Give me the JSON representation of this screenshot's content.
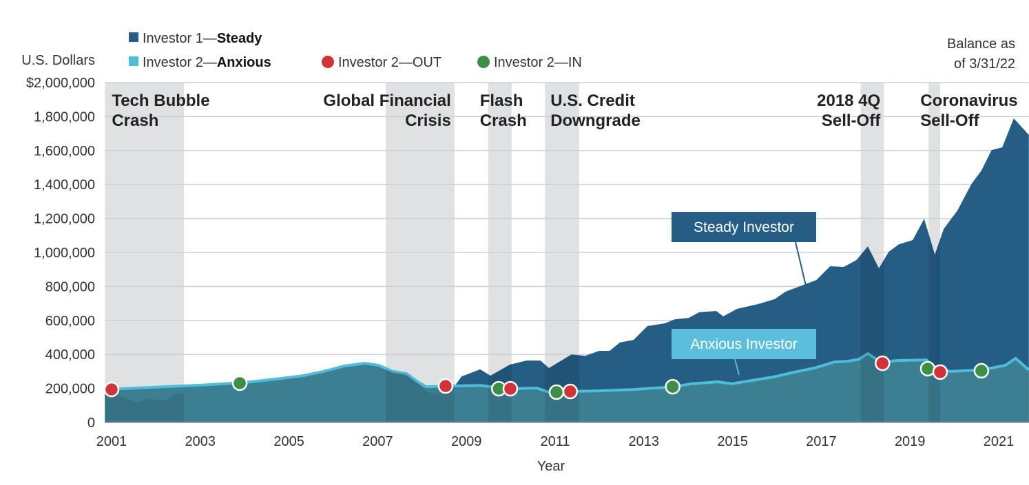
{
  "chart_data": {
    "type": "area",
    "ylabel": "U.S. Dollars",
    "xlabel": "Year",
    "ylim": [
      0,
      2000000
    ],
    "xlim": [
      2000.85,
      2021.68
    ],
    "grid": true,
    "yticks": [
      "$2,000,000",
      "1,800,000",
      "1,600,000",
      "1,400,000",
      "1,200,000",
      "1,000,000",
      "800,000",
      "600,000",
      "400,000",
      "200,000",
      "0"
    ],
    "ytick_values": [
      2000000,
      1800000,
      1600000,
      1400000,
      1200000,
      1000000,
      800000,
      600000,
      400000,
      200000,
      0
    ],
    "xticks": [
      "2001",
      "2003",
      "2005",
      "2007",
      "2009",
      "2011",
      "2013",
      "2015",
      "2017",
      "2019",
      "2021"
    ],
    "balance_note": [
      "Balance as",
      "of 3/31/22"
    ],
    "legend": {
      "placement": "top-left",
      "steady": {
        "prefix": "Investor 1—",
        "bold": "Steady"
      },
      "anxious": {
        "prefix": "Investor 2—",
        "bold": "Anxious"
      },
      "out": "Investor 2—OUT",
      "in": "Investor 2—IN"
    },
    "colors": {
      "steady": "#255d84",
      "anxious_fill": "#3c7f93",
      "anxious_line": "#4fbcd9",
      "out": "#d13438",
      "in": "#3d8f47",
      "band": "#e0e1e3",
      "label_anxious": "#5bbfdc"
    },
    "series": [
      {
        "name": "Steady Investor",
        "points": [
          [
            2000.85,
            178000
          ],
          [
            2001.0,
            186000
          ],
          [
            2001.36,
            138000
          ],
          [
            2001.59,
            117000
          ],
          [
            2001.82,
            138000
          ],
          [
            2002.21,
            130000
          ],
          [
            2002.44,
            170000
          ],
          [
            2002.68,
            170000
          ],
          [
            2002.99,
            194000
          ],
          [
            2003.45,
            210000
          ],
          [
            2004.07,
            227000
          ],
          [
            2004.7,
            251000
          ],
          [
            2005.32,
            275000
          ],
          [
            2005.78,
            300000
          ],
          [
            2006.25,
            332000
          ],
          [
            2006.71,
            348000
          ],
          [
            2007.02,
            332000
          ],
          [
            2007.34,
            300000
          ],
          [
            2007.65,
            287000
          ],
          [
            2007.88,
            235000
          ],
          [
            2008.11,
            178000
          ],
          [
            2008.42,
            162000
          ],
          [
            2008.66,
            186000
          ],
          [
            2008.89,
            270000
          ],
          [
            2009.31,
            312000
          ],
          [
            2009.54,
            275000
          ],
          [
            2009.98,
            340000
          ],
          [
            2010.36,
            364000
          ],
          [
            2010.67,
            364000
          ],
          [
            2010.86,
            320000
          ],
          [
            2011.37,
            400000
          ],
          [
            2011.68,
            392000
          ],
          [
            2011.99,
            421000
          ],
          [
            2012.23,
            421000
          ],
          [
            2012.46,
            470000
          ],
          [
            2012.77,
            486000
          ],
          [
            2013.08,
            567000
          ],
          [
            2013.47,
            583000
          ],
          [
            2013.7,
            607000
          ],
          [
            2014.01,
            615000
          ],
          [
            2014.25,
            648000
          ],
          [
            2014.63,
            656000
          ],
          [
            2014.79,
            624000
          ],
          [
            2015.1,
            668000
          ],
          [
            2015.57,
            696000
          ],
          [
            2015.95,
            725000
          ],
          [
            2016.19,
            769000
          ],
          [
            2016.57,
            806000
          ],
          [
            2016.89,
            838000
          ],
          [
            2017.2,
            919000
          ],
          [
            2017.51,
            915000
          ],
          [
            2017.79,
            955000
          ],
          [
            2018.05,
            1036000
          ],
          [
            2018.3,
            907000
          ],
          [
            2018.52,
            1004000
          ],
          [
            2018.75,
            1048000
          ],
          [
            2019.06,
            1073000
          ],
          [
            2019.32,
            1198000
          ],
          [
            2019.56,
            988000
          ],
          [
            2019.76,
            1138000
          ],
          [
            2020.07,
            1247000
          ],
          [
            2020.38,
            1401000
          ],
          [
            2020.61,
            1482000
          ],
          [
            2020.84,
            1603000
          ],
          [
            2021.08,
            1619000
          ],
          [
            2021.34,
            1789000
          ],
          [
            2021.68,
            1692000
          ]
        ]
      },
      {
        "name": "Anxious Investor",
        "points": [
          [
            2000.85,
            194000
          ],
          [
            2002.21,
            210000
          ],
          [
            2003.0,
            219000
          ],
          [
            2004.01,
            235000
          ],
          [
            2004.7,
            255000
          ],
          [
            2005.32,
            275000
          ],
          [
            2005.78,
            300000
          ],
          [
            2006.25,
            332000
          ],
          [
            2006.71,
            348000
          ],
          [
            2007.02,
            336000
          ],
          [
            2007.34,
            300000
          ],
          [
            2007.65,
            287000
          ],
          [
            2007.88,
            243000
          ],
          [
            2008.09,
            210000
          ],
          [
            2008.66,
            214000
          ],
          [
            2009.31,
            218000
          ],
          [
            2009.54,
            210000
          ],
          [
            2009.98,
            198000
          ],
          [
            2010.59,
            202000
          ],
          [
            2010.86,
            178000
          ],
          [
            2011.37,
            182000
          ],
          [
            2011.99,
            186000
          ],
          [
            2012.77,
            194000
          ],
          [
            2013.7,
            210000
          ],
          [
            2014.06,
            227000
          ],
          [
            2014.67,
            239000
          ],
          [
            2014.98,
            227000
          ],
          [
            2015.44,
            247000
          ],
          [
            2015.91,
            267000
          ],
          [
            2016.38,
            295000
          ],
          [
            2016.84,
            320000
          ],
          [
            2017.3,
            356000
          ],
          [
            2017.61,
            360000
          ],
          [
            2017.85,
            372000
          ],
          [
            2018.05,
            405000
          ],
          [
            2018.36,
            352000
          ],
          [
            2018.67,
            364000
          ],
          [
            2019.37,
            368000
          ],
          [
            2019.6,
            316000
          ],
          [
            2019.91,
            300000
          ],
          [
            2020.53,
            308000
          ],
          [
            2020.84,
            320000
          ],
          [
            2021.15,
            336000
          ],
          [
            2021.38,
            377000
          ],
          [
            2021.68,
            308000
          ]
        ]
      }
    ],
    "markers": [
      {
        "type": "out",
        "x": 2001.0,
        "y": 194000
      },
      {
        "type": "in",
        "x": 2003.89,
        "y": 231000
      },
      {
        "type": "out",
        "x": 2008.53,
        "y": 214000
      },
      {
        "type": "in",
        "x": 2009.73,
        "y": 198000
      },
      {
        "type": "out",
        "x": 2009.99,
        "y": 198000
      },
      {
        "type": "in",
        "x": 2011.03,
        "y": 178000
      },
      {
        "type": "out",
        "x": 2011.34,
        "y": 182000
      },
      {
        "type": "in",
        "x": 2013.65,
        "y": 210000
      },
      {
        "type": "out",
        "x": 2018.38,
        "y": 348000
      },
      {
        "type": "in",
        "x": 2019.4,
        "y": 316000
      },
      {
        "type": "out",
        "x": 2019.68,
        "y": 296000
      },
      {
        "type": "in",
        "x": 2020.61,
        "y": 304000
      }
    ],
    "events": [
      {
        "lines": [
          "Tech Bubble",
          "Crash"
        ],
        "start": 2000.85,
        "end": 2002.63,
        "align": "start"
      },
      {
        "lines": [
          "Global Financial",
          "Crisis"
        ],
        "start": 2007.18,
        "end": 2008.73,
        "align": "end"
      },
      {
        "lines": [
          "Flash",
          "Crash"
        ],
        "start": 2009.49,
        "end": 2010.02,
        "align": "start"
      },
      {
        "lines": [
          "U.S. Credit",
          "Downgrade"
        ],
        "start": 2010.77,
        "end": 2011.54,
        "align": "start"
      },
      {
        "lines": [
          "2018 4Q",
          "Sell-Off"
        ],
        "start": 2017.89,
        "end": 2018.41,
        "align": "end"
      },
      {
        "lines": [
          "Coronavirus",
          "Sell-Off"
        ],
        "start": 2019.42,
        "end": 2019.68,
        "align": "start"
      }
    ],
    "annotations": [
      "Steady Investor",
      "Anxious Investor"
    ]
  }
}
